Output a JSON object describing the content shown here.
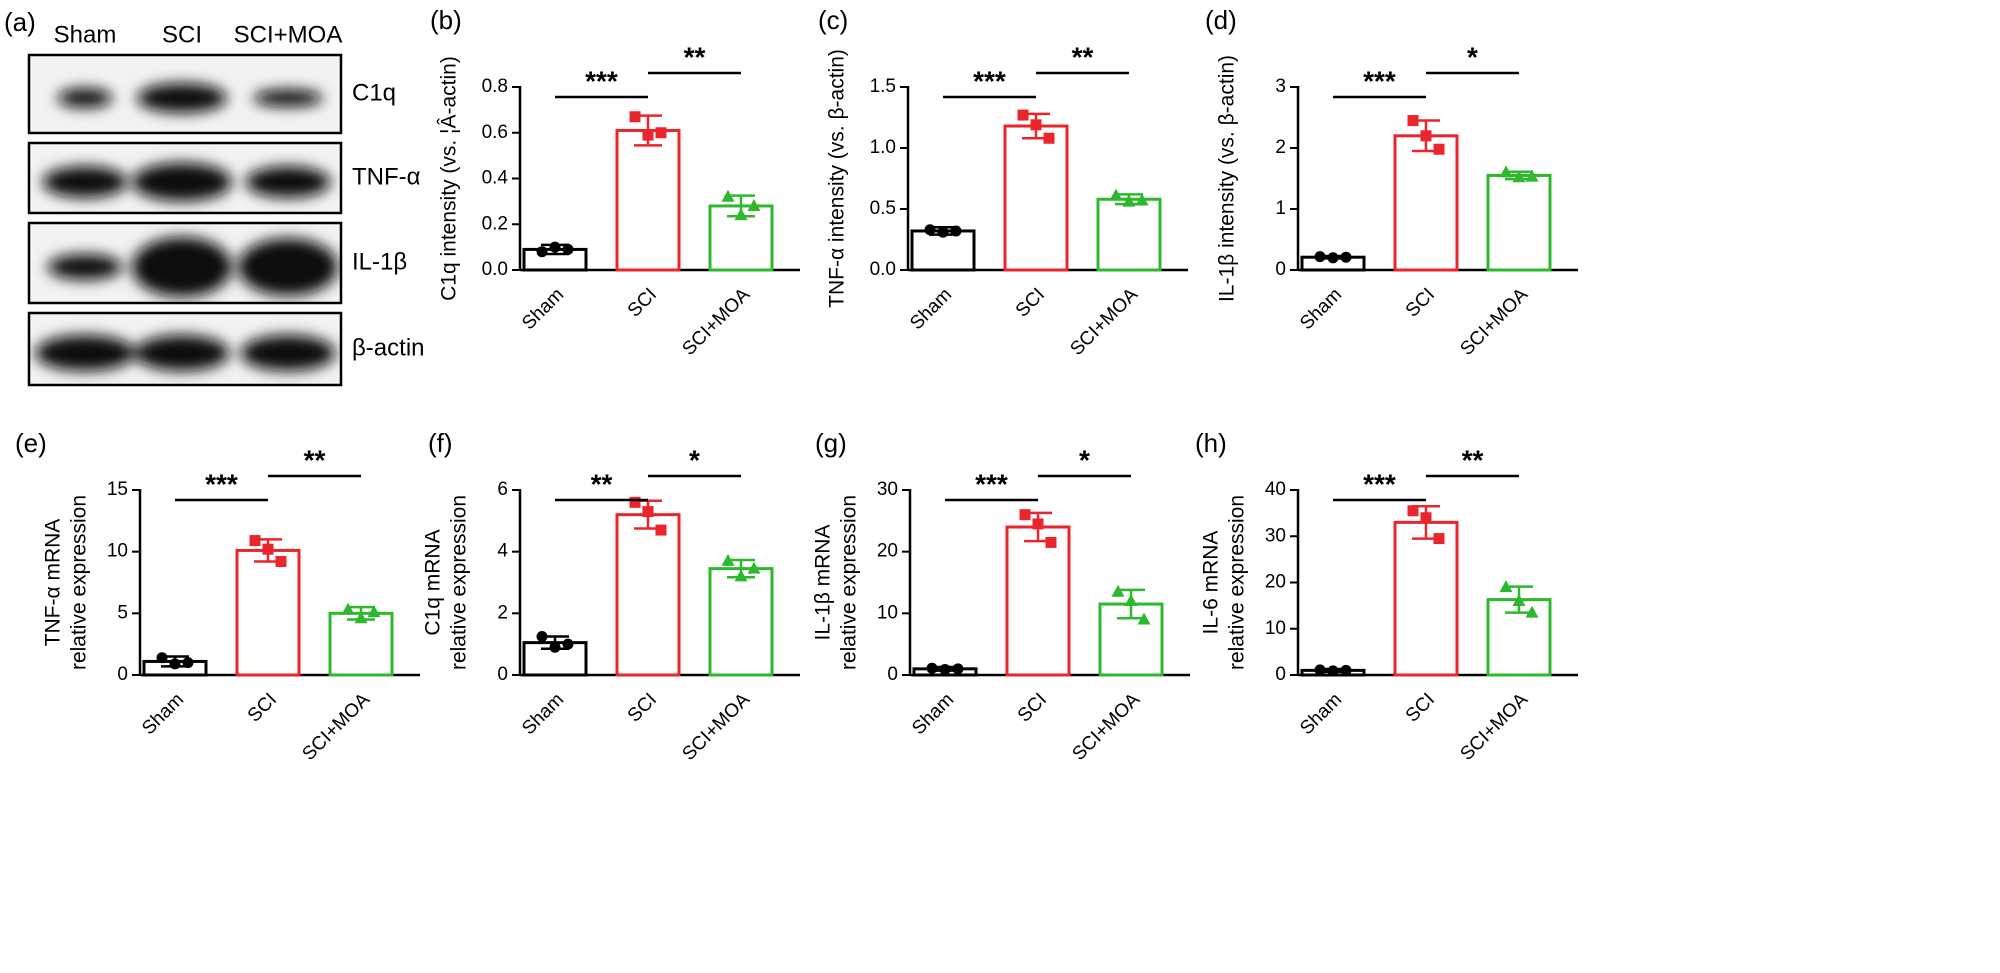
{
  "blot": {
    "panel_label": "(a)",
    "lanes": [
      "Sham",
      "SCI",
      "SCI+MOA"
    ],
    "bands": [
      "C1q",
      "TNF-α",
      "IL-1β",
      "β-actin"
    ]
  },
  "chart_data": [
    {
      "type": "bar",
      "panel_label": "(b)",
      "ylabel": [
        "C1q intensity (vs. ¦Â-actin)"
      ],
      "categories": [
        "Sham",
        "SCI",
        "SCI+MOA"
      ],
      "colors": [
        "#000000",
        "#e8262b",
        "#2eb82e"
      ],
      "values": [
        0.09,
        0.61,
        0.28
      ],
      "errors": [
        0.02,
        0.065,
        0.045
      ],
      "points": [
        [
          0.08,
          0.1,
          0.09
        ],
        [
          0.67,
          0.59,
          0.6
        ],
        [
          0.32,
          0.24,
          0.28
        ]
      ],
      "ylim": [
        0,
        0.8
      ],
      "yticks": [
        {
          "value": 0,
          "label": "0.0"
        },
        0.2,
        0.4,
        0.6,
        0.8
      ],
      "annotations": [
        "***",
        "**"
      ]
    },
    {
      "type": "bar",
      "panel_label": "(c)",
      "ylabel": [
        "TNF-α intensity (vs.  β-actin)"
      ],
      "categories": [
        "Sham",
        "SCI",
        "SCI+MOA"
      ],
      "colors": [
        "#000000",
        "#e8262b",
        "#2eb82e"
      ],
      "values": [
        0.32,
        1.18,
        0.58
      ],
      "errors": [
        0.03,
        0.1,
        0.04
      ],
      "points": [
        [
          0.33,
          0.31,
          0.32
        ],
        [
          1.27,
          1.19,
          1.08
        ],
        [
          0.61,
          0.56,
          0.57
        ]
      ],
      "ylim": [
        0,
        1.5
      ],
      "yticks": [
        {
          "value": 0,
          "label": "0.0"
        },
        0.5,
        {
          "value": 1,
          "label": "1.0"
        },
        1.5
      ],
      "annotations": [
        "***",
        "**"
      ]
    },
    {
      "type": "bar",
      "panel_label": "(d)",
      "ylabel": [
        "IL-1β intensity (vs.  β-actin)"
      ],
      "categories": [
        "Sham",
        "SCI",
        "SCI+MOA"
      ],
      "colors": [
        "#000000",
        "#e8262b",
        "#2eb82e"
      ],
      "values": [
        0.21,
        2.2,
        1.55
      ],
      "errors": [
        0.02,
        0.25,
        0.06
      ],
      "points": [
        [
          0.22,
          0.2,
          0.21
        ],
        [
          2.45,
          2.2,
          1.98
        ],
        [
          1.6,
          1.52,
          1.53
        ]
      ],
      "ylim": [
        0,
        3
      ],
      "yticks": [
        0,
        1,
        2,
        3
      ],
      "annotations": [
        "***",
        "*"
      ]
    },
    {
      "type": "bar",
      "panel_label": "(e)",
      "ylabel": [
        "TNF-α mRNA",
        "relative expression"
      ],
      "categories": [
        "Sham",
        "SCI",
        "SCI+MOA"
      ],
      "colors": [
        "#000000",
        "#e8262b",
        "#2eb82e"
      ],
      "values": [
        1.1,
        10.1,
        5.0
      ],
      "errors": [
        0.4,
        0.9,
        0.5
      ],
      "points": [
        [
          1.4,
          0.9,
          1.0
        ],
        [
          10.9,
          10.2,
          9.2
        ],
        [
          5.3,
          4.6,
          5.1
        ]
      ],
      "ylim": [
        0,
        15
      ],
      "yticks": [
        0,
        5,
        10,
        15
      ],
      "annotations": [
        "***",
        "**"
      ]
    },
    {
      "type": "bar",
      "panel_label": "(f)",
      "ylabel": [
        "C1q mRNA",
        "relative expression"
      ],
      "categories": [
        "Sham",
        "SCI",
        "SCI+MOA"
      ],
      "colors": [
        "#000000",
        "#e8262b",
        "#2eb82e"
      ],
      "values": [
        1.05,
        5.2,
        3.45
      ],
      "errors": [
        0.2,
        0.45,
        0.28
      ],
      "points": [
        [
          1.25,
          0.9,
          1.0
        ],
        [
          5.6,
          5.3,
          4.7
        ],
        [
          3.7,
          3.2,
          3.45
        ]
      ],
      "ylim": [
        0,
        6
      ],
      "yticks": [
        0,
        2,
        4,
        6
      ],
      "annotations": [
        "**",
        "*"
      ]
    },
    {
      "type": "bar",
      "panel_label": "(g)",
      "ylabel": [
        "IL-1β mRNA",
        "relative expression"
      ],
      "categories": [
        "Sham",
        "SCI",
        "SCI+MOA"
      ],
      "colors": [
        "#000000",
        "#e8262b",
        "#2eb82e"
      ],
      "values": [
        1.0,
        24,
        11.5
      ],
      "errors": [
        0.3,
        2.3,
        2.3
      ],
      "points": [
        [
          1.1,
          0.9,
          1.0
        ],
        [
          26,
          24.5,
          21.5
        ],
        [
          13.5,
          12,
          9
        ]
      ],
      "ylim": [
        0,
        30
      ],
      "yticks": [
        0,
        10,
        20,
        30
      ],
      "annotations": [
        "***",
        "*"
      ]
    },
    {
      "type": "bar",
      "panel_label": "(h)",
      "ylabel": [
        "IL-6 mRNA",
        "relative expression"
      ],
      "categories": [
        "Sham",
        "SCI",
        "SCI+MOA"
      ],
      "colors": [
        "#000000",
        "#e8262b",
        "#2eb82e"
      ],
      "values": [
        1.0,
        33,
        16.3
      ],
      "errors": [
        0.3,
        3.5,
        2.8
      ],
      "points": [
        [
          1.1,
          0.9,
          1.0
        ],
        [
          35.5,
          34,
          29.5
        ],
        [
          19,
          16,
          13.5
        ]
      ],
      "ylim": [
        0,
        40
      ],
      "yticks": [
        0,
        10,
        20,
        30,
        40
      ],
      "annotations": [
        "***",
        "**"
      ]
    }
  ]
}
